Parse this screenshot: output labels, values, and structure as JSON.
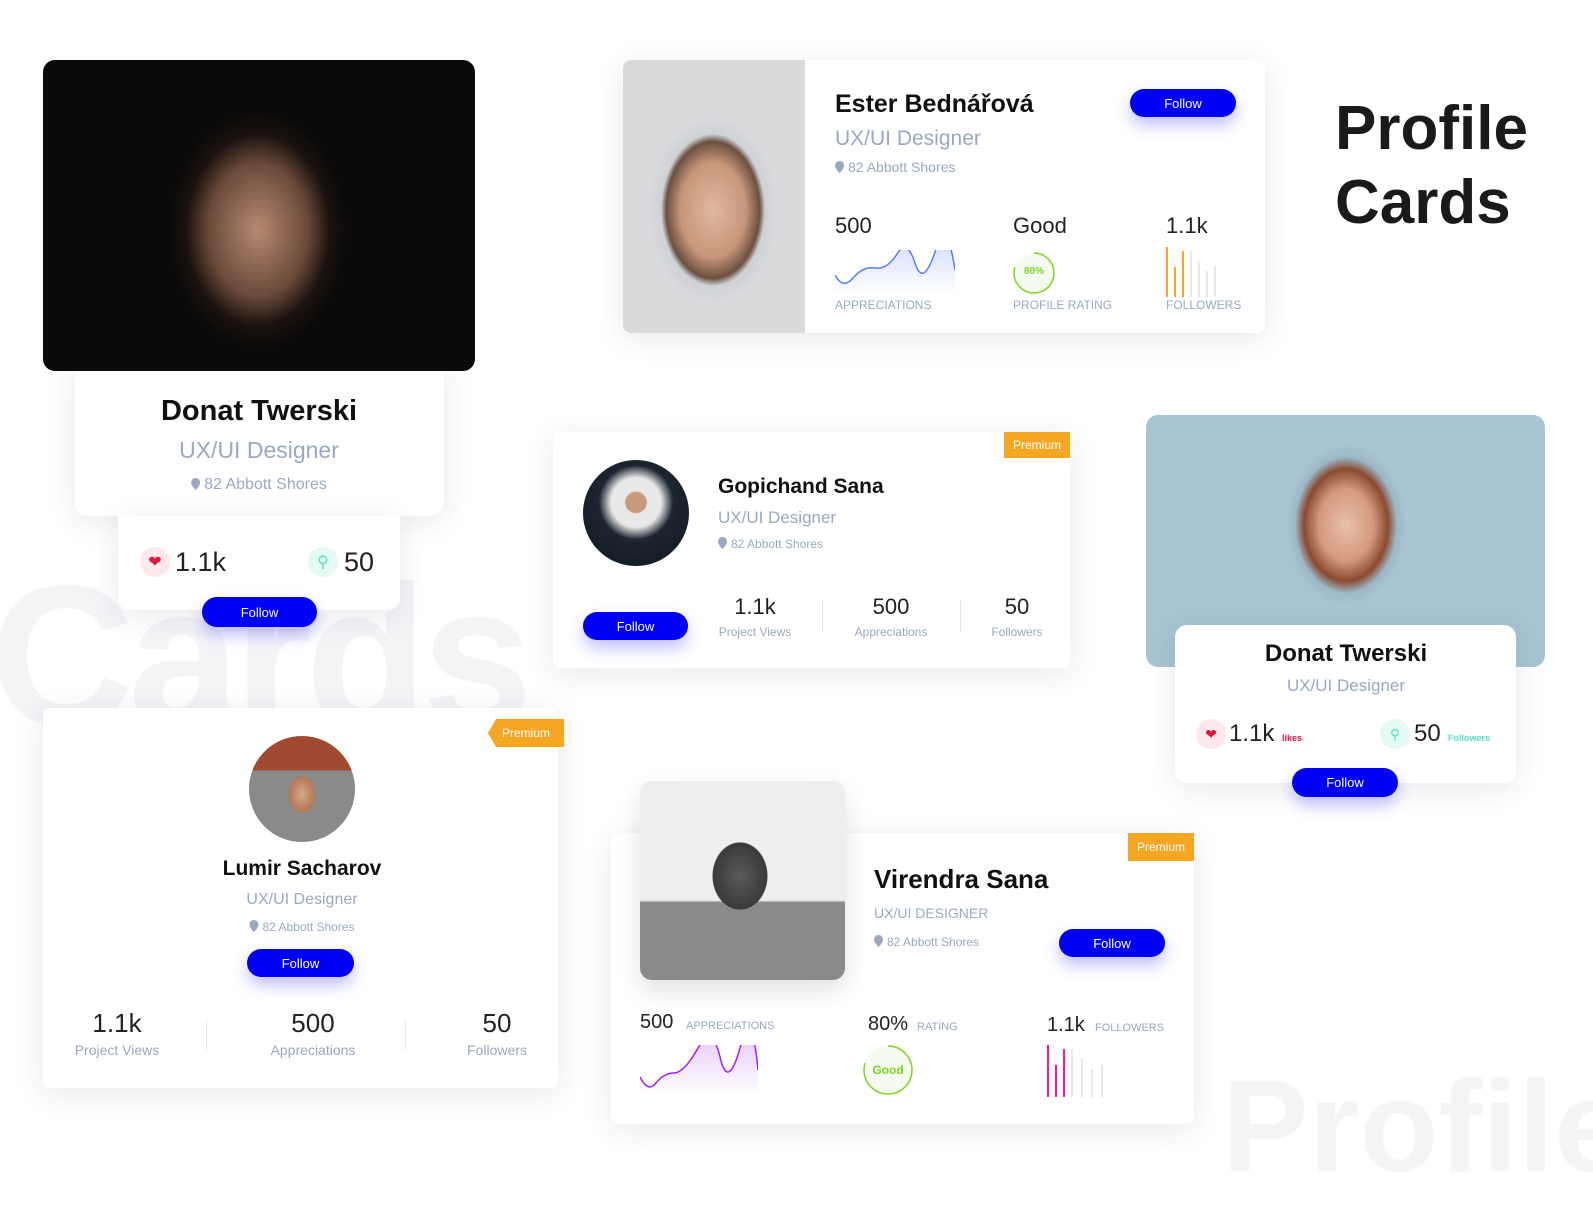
{
  "title": {
    "line1": "Profile",
    "line2": "Cards"
  },
  "watermarks": {
    "left": "Cards",
    "right": "Profile"
  },
  "colors": {
    "accent": "#0000f5",
    "premium": "#f5a623",
    "muted": "#9aa8c0",
    "good": "#7ed321",
    "orange": "#f5a623",
    "pink": "#ff1493",
    "purple": "#a020f0",
    "likes": "#e0173c",
    "followers_teal": "#50e3c2"
  },
  "card_donat_large": {
    "name": "Donat Twerski",
    "role": "UX/UI Designer",
    "location": "82 Abbott Shores",
    "likes": "1.1k",
    "followers": "50",
    "follow": "Follow",
    "icons": [
      "hearts-icon",
      "user-pin-icon"
    ]
  },
  "card_ester": {
    "name": "Ester Bednářová",
    "role": "UX/UI Designer",
    "location": "82 Abbott Shores",
    "follow": "Follow",
    "stats": [
      {
        "value": "500",
        "label": "APPRECIATIONS"
      },
      {
        "value": "Good",
        "label": "PROFILE RATING",
        "ring": "80%",
        "ring_fraction": 0.8
      },
      {
        "value": "1.1k",
        "label": "FOLLOWERS"
      }
    ]
  },
  "card_gopichand": {
    "name": "Gopichand Sana",
    "role": "UX/UI Designer",
    "location": "82 Abbott Shores",
    "badge": "Premium",
    "follow": "Follow",
    "stats": [
      {
        "value": "1.1k",
        "label": "Project Views"
      },
      {
        "value": "500",
        "label": "Appreciations"
      },
      {
        "value": "50",
        "label": "Followers"
      }
    ]
  },
  "card_donat_small": {
    "name": "Donat Twerski",
    "role": "UX/UI Designer",
    "likes": "1.1k",
    "likes_label": "likes",
    "followers": "50",
    "followers_label": "Followers",
    "follow": "Follow"
  },
  "card_lumir": {
    "name": "Lumir Sacharov",
    "role": "UX/UI Designer",
    "location": "82 Abbott Shores",
    "badge": "Premium",
    "follow": "Follow",
    "stats": [
      {
        "value": "1.1k",
        "label": "Project Views"
      },
      {
        "value": "500",
        "label": "Appreciations"
      },
      {
        "value": "50",
        "label": "Followers"
      }
    ]
  },
  "card_virendra": {
    "name": "Virendra Sana",
    "role": "UX/UI DESIGNER",
    "location": "82 Abbott Shores",
    "badge": "Premium",
    "follow": "Follow",
    "stats": [
      {
        "value": "500",
        "label": "APPRECIATIONS"
      },
      {
        "value": "80%",
        "label": "RATING",
        "ring": "Good",
        "ring_fraction": 0.8
      },
      {
        "value": "1.1k",
        "label": "FOLLOWERS"
      }
    ]
  }
}
